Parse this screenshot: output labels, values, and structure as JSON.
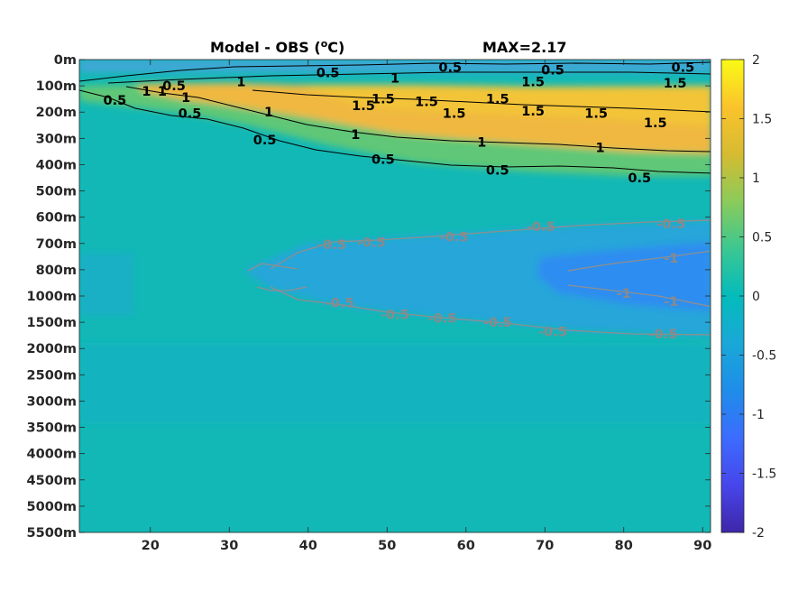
{
  "chart_data": {
    "type": "heatmap",
    "title_left": "Model - OBS (",
    "title_unit": "o",
    "title_unit_tail": "C)",
    "title_right": "MAX=2.17",
    "y_ticks": [
      "0m",
      "100m",
      "200m",
      "300m",
      "400m",
      "500m",
      "600m",
      "700m",
      "800m",
      "1000m",
      "1500m",
      "2000m",
      "2500m",
      "3000m",
      "3500m",
      "4000m",
      "4500m",
      "5000m",
      "5500m"
    ],
    "x_ticks": [
      "20",
      "30",
      "40",
      "50",
      "60",
      "70",
      "80",
      "90"
    ],
    "x_tick_values": [
      20,
      30,
      40,
      50,
      60,
      70,
      80,
      90
    ],
    "x_range": [
      11,
      91
    ],
    "colorbar": {
      "ticks": [
        "2",
        "1.5",
        "1",
        "0.5",
        "0",
        "-0.5",
        "-1",
        "-1.5",
        "-2"
      ],
      "range": [
        -2,
        2
      ],
      "colormap": "parula"
    },
    "contour_labels_black": [
      {
        "text": "0.5",
        "x": 15.5,
        "y": 1.55
      },
      {
        "text": "1",
        "x": 19.5,
        "y": 1.2
      },
      {
        "text": "1",
        "x": 21.5,
        "y": 1.2
      },
      {
        "text": "0.5",
        "x": 23,
        "y": 1.0
      },
      {
        "text": "1",
        "x": 24.5,
        "y": 1.45
      },
      {
        "text": "0.5",
        "x": 25,
        "y": 2.05
      },
      {
        "text": "1",
        "x": 31.5,
        "y": 0.85
      },
      {
        "text": "1",
        "x": 35,
        "y": 2.0
      },
      {
        "text": "0.5",
        "x": 34.5,
        "y": 3.05
      },
      {
        "text": "0.5",
        "x": 42.5,
        "y": 0.5
      },
      {
        "text": "1.5",
        "x": 47,
        "y": 1.75
      },
      {
        "text": "1.5",
        "x": 49.5,
        "y": 1.5
      },
      {
        "text": "1",
        "x": 51,
        "y": 0.7
      },
      {
        "text": "1",
        "x": 46,
        "y": 2.85
      },
      {
        "text": "0.5",
        "x": 49.5,
        "y": 3.8
      },
      {
        "text": "0.5",
        "x": 58,
        "y": 0.3
      },
      {
        "text": "1.5",
        "x": 55,
        "y": 1.6
      },
      {
        "text": "1.5",
        "x": 58.5,
        "y": 2.05
      },
      {
        "text": "1.5",
        "x": 64,
        "y": 1.5
      },
      {
        "text": "1",
        "x": 62,
        "y": 3.15
      },
      {
        "text": "0.5",
        "x": 64,
        "y": 4.2
      },
      {
        "text": "1.5",
        "x": 68.5,
        "y": 0.85
      },
      {
        "text": "0.5",
        "x": 71,
        "y": 0.4
      },
      {
        "text": "1.5",
        "x": 68.5,
        "y": 1.95
      },
      {
        "text": "1.5",
        "x": 76.5,
        "y": 2.05
      },
      {
        "text": "1",
        "x": 77,
        "y": 3.35
      },
      {
        "text": "0.5",
        "x": 82,
        "y": 4.5
      },
      {
        "text": "1.5",
        "x": 84,
        "y": 2.4
      },
      {
        "text": "0.5",
        "x": 87.5,
        "y": 0.3
      },
      {
        "text": "1.5",
        "x": 86.5,
        "y": 0.9
      }
    ],
    "contour_labels_gray": [
      {
        "text": "-0.5",
        "x": 43,
        "y": 7.05
      },
      {
        "text": "-0.5",
        "x": 48,
        "y": 6.95
      },
      {
        "text": "-0.5",
        "x": 58.5,
        "y": 6.75
      },
      {
        "text": "-0.5",
        "x": 69.5,
        "y": 6.35
      },
      {
        "text": "-0.5",
        "x": 86,
        "y": 6.25
      },
      {
        "text": "-0.5",
        "x": 44,
        "y": 9.25
      },
      {
        "text": "-0.5",
        "x": 51,
        "y": 9.7
      },
      {
        "text": "-0.5",
        "x": 57,
        "y": 9.85
      },
      {
        "text": "-0.5",
        "x": 64,
        "y": 10.0
      },
      {
        "text": "-0.5",
        "x": 71,
        "y": 10.35
      },
      {
        "text": "-0.5",
        "x": 85,
        "y": 10.45
      },
      {
        "text": "-1",
        "x": 86,
        "y": 7.55
      },
      {
        "text": "-1",
        "x": 86,
        "y": 9.2
      },
      {
        "text": "-1",
        "x": 80,
        "y": 8.9
      }
    ]
  }
}
